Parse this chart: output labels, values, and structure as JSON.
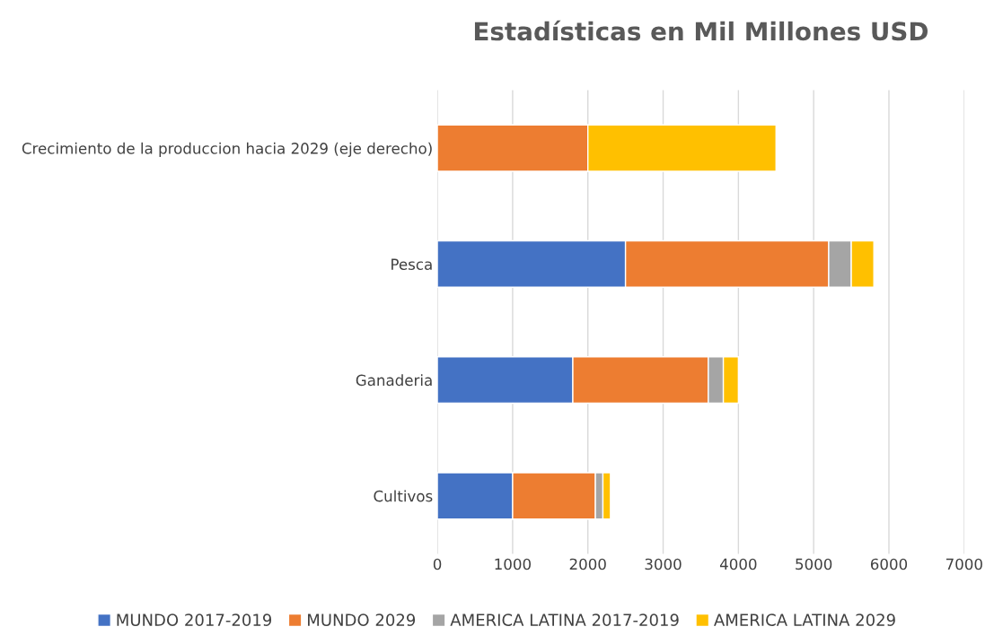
{
  "chart_data": {
    "type": "bar",
    "orientation": "horizontal",
    "stacked": true,
    "title": "Estadísticas en Mil Millones USD",
    "categories": [
      "Crecimiento de la produccion hacia 2029 (eje derecho)",
      "Pesca",
      "Ganaderia",
      "Cultivos"
    ],
    "series": [
      {
        "name": "MUNDO 2017-2019",
        "color": "#4472c4",
        "values": [
          0,
          2500,
          1800,
          1000
        ]
      },
      {
        "name": "MUNDO 2029",
        "color": "#ed7d31",
        "values": [
          2000,
          2700,
          1800,
          1100
        ]
      },
      {
        "name": "AMERICA LATINA 2017-2019",
        "color": "#a5a5a5",
        "values": [
          0,
          300,
          200,
          100
        ]
      },
      {
        "name": "AMERICA LATINA 2029",
        "color": "#ffc000",
        "values": [
          2500,
          300,
          200,
          100
        ]
      }
    ],
    "xlim": [
      0,
      7000
    ],
    "xticks": [
      0,
      1000,
      2000,
      3000,
      4000,
      5000,
      6000,
      7000
    ],
    "grid": "x",
    "legend": "bottom"
  }
}
